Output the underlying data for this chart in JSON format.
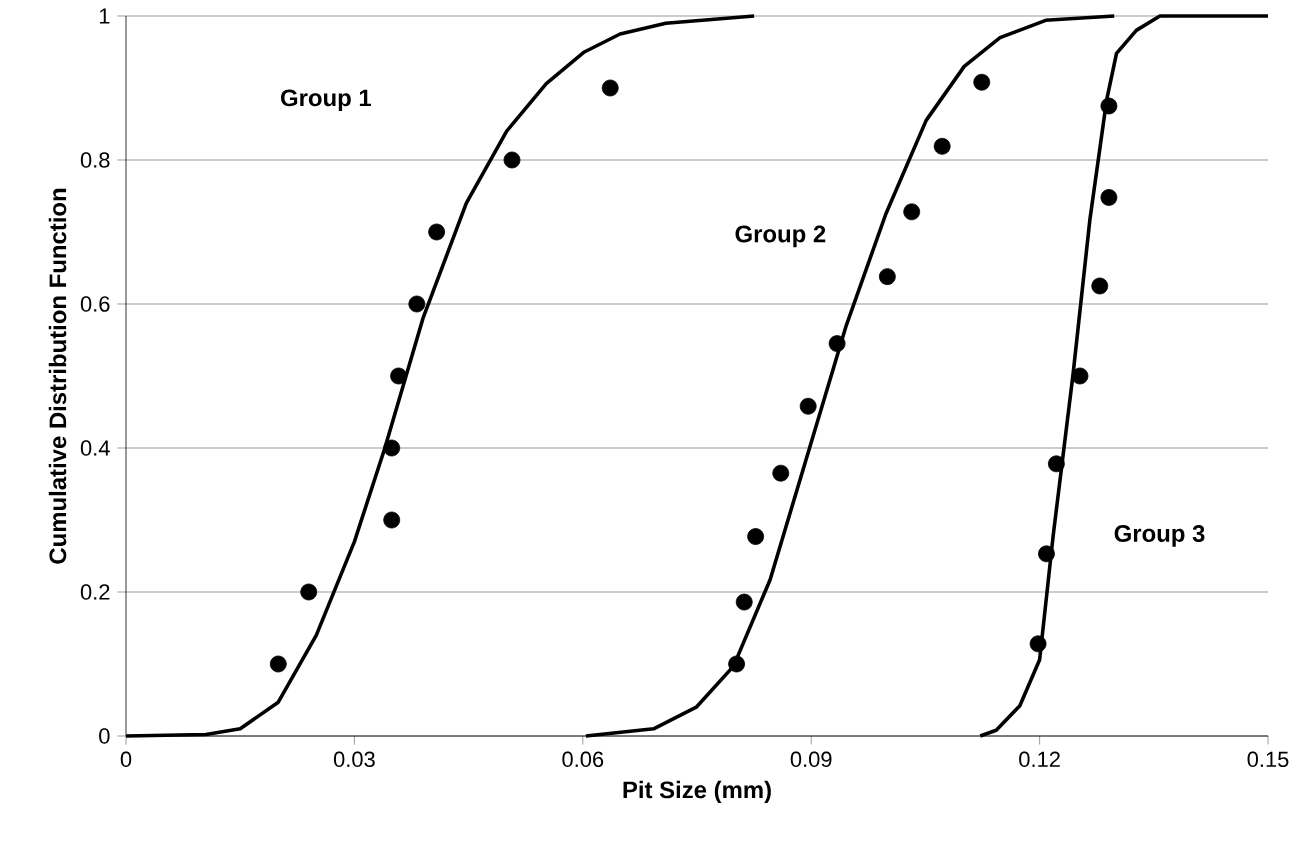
{
  "chart_data": {
    "type": "line",
    "xlabel": "Pit Size (mm)",
    "ylabel": "Cumulative Distribution Function",
    "xlim": [
      0,
      0.15
    ],
    "xticks": [
      0,
      0.03,
      0.06,
      0.09,
      0.12,
      0.15
    ],
    "ylim": [
      0,
      1
    ],
    "yticks": [
      0,
      0.2,
      0.4,
      0.6,
      0.8,
      1
    ],
    "grid": "y",
    "series": [
      {
        "type": "scatter",
        "marker": "circle",
        "color": "#000000",
        "x": [
          0.02,
          0.024,
          0.0349,
          0.0349,
          0.0358,
          0.0382,
          0.0408,
          0.0507,
          0.0636
        ],
        "values": [
          0.1,
          0.2,
          0.3,
          0.4,
          0.5,
          0.6,
          0.7,
          0.8,
          0.9
        ]
      },
      {
        "marker": "none",
        "color": "#000000",
        "x": [
          0,
          0.0105,
          0.015,
          0.02,
          0.025,
          0.03,
          0.034,
          0.039,
          0.0447,
          0.05,
          0.0552,
          0.0602,
          0.0649,
          0.0709,
          0.0825
        ],
        "values": [
          0,
          0.002,
          0.01,
          0.047,
          0.14,
          0.27,
          0.4,
          0.58,
          0.74,
          0.84,
          0.906,
          0.95,
          0.975,
          0.99,
          1
        ]
      },
      {
        "type": "scatter",
        "marker": "circle",
        "color": "#000000",
        "x": [
          0.0802,
          0.0812,
          0.0827,
          0.086,
          0.0896,
          0.0934,
          0.1,
          0.1032,
          0.1072,
          0.1124
        ],
        "values": [
          0.1,
          0.186,
          0.277,
          0.365,
          0.458,
          0.545,
          0.638,
          0.728,
          0.819,
          0.908
        ]
      },
      {
        "marker": "none",
        "color": "#000000",
        "x": [
          0.0604,
          0.0693,
          0.0749,
          0.0798,
          0.0846,
          0.0893,
          0.0946,
          0.0998,
          0.1051,
          0.1101,
          0.1148,
          0.1208,
          0.1298
        ],
        "values": [
          0,
          0.01,
          0.04,
          0.097,
          0.217,
          0.383,
          0.57,
          0.725,
          0.855,
          0.93,
          0.97,
          0.994,
          1
        ]
      },
      {
        "type": "scatter",
        "marker": "circle",
        "color": "#000000",
        "x": [
          0.1198,
          0.1209,
          0.1222,
          0.1253,
          0.1279,
          0.1291,
          0.1291
        ],
        "values": [
          0.128,
          0.253,
          0.378,
          0.5,
          0.625,
          0.748,
          0.875
        ]
      },
      {
        "marker": "none",
        "color": "#000000",
        "x": [
          0.1122,
          0.1143,
          0.1174,
          0.12,
          0.1218,
          0.1244,
          0.1266,
          0.1288,
          0.1301,
          0.1327,
          0.1358,
          0.15
        ],
        "values": [
          0,
          0.008,
          0.042,
          0.106,
          0.28,
          0.503,
          0.717,
          0.883,
          0.948,
          0.98,
          1,
          1
        ]
      }
    ],
    "annotations": [
      "Group 1",
      "Group 2",
      "Group 3"
    ]
  }
}
